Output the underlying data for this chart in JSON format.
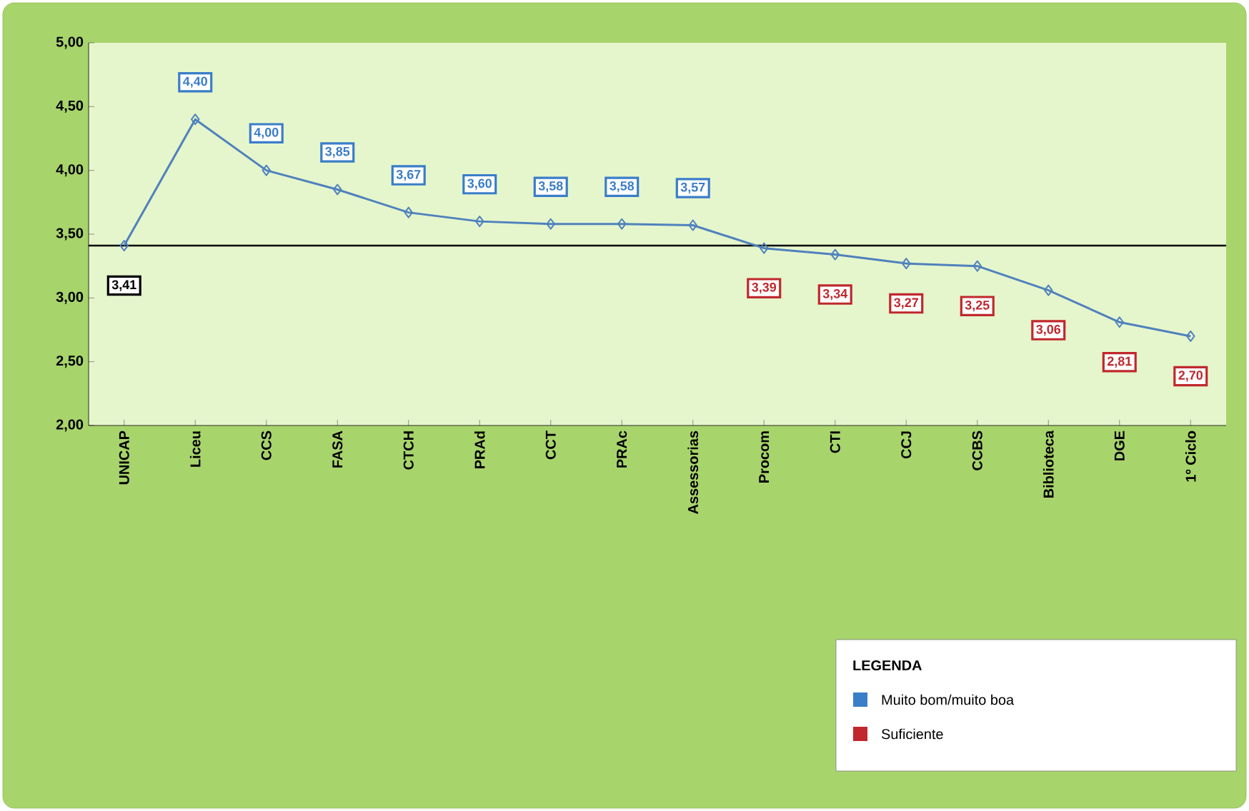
{
  "chart_data": {
    "type": "line",
    "categories": [
      "UNICAP",
      "Liceu",
      "CCS",
      "FASA",
      "CTCH",
      "PRAd",
      "CCT",
      "PRAc",
      "Assessorias",
      "Procom",
      "CTI",
      "CCJ",
      "CCBS",
      "Biblioteca",
      "DGE",
      "1º Ciclo"
    ],
    "series": [
      {
        "color": "#4f81bd",
        "values": [
          3.41,
          4.4,
          4.0,
          3.85,
          3.67,
          3.6,
          3.58,
          3.58,
          3.57,
          3.39,
          3.34,
          3.27,
          3.25,
          3.06,
          2.81,
          2.7
        ],
        "value_labels": [
          "3,41",
          "4,40",
          "4,00",
          "3,85",
          "3,67",
          "3,60",
          "3,58",
          "3,58",
          "3,57",
          "3,39",
          "3,34",
          "3,27",
          "3,25",
          "3,06",
          "2,81",
          "2,70"
        ],
        "colors": [
          "#000000",
          "#3a7dc9",
          "#3a7dc9",
          "#3a7dc9",
          "#3a7dc9",
          "#3a7dc9",
          "#3a7dc9",
          "#3a7dc9",
          "#3a7dc9",
          "#c0282d",
          "#c0282d",
          "#c0282d",
          "#c0282d",
          "#c0282d",
          "#c0282d",
          "#c0282d"
        ]
      }
    ],
    "ylim": [
      2,
      5
    ],
    "yticks": [
      {
        "value": 2,
        "label": "2,00"
      },
      {
        "value": 2.5,
        "label": "2,50"
      },
      {
        "value": 3,
        "label": "3,00"
      },
      {
        "value": 3.5,
        "label": "3,50"
      },
      {
        "value": 4,
        "label": "4,00"
      },
      {
        "value": 4.5,
        "label": "4,50"
      },
      {
        "value": 5,
        "label": "5,00"
      }
    ],
    "ref_lines": [
      {
        "axis": "y",
        "value": 3.41,
        "color": "#000000"
      }
    ],
    "marker": "diamond",
    "grid": false,
    "legend_title": "LEGENDA",
    "annotations": [
      "Muito bom/muito boa",
      "Suficiente"
    ]
  }
}
